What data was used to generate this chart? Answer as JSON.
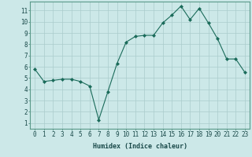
{
  "x": [
    0,
    1,
    2,
    3,
    4,
    5,
    6,
    7,
    8,
    9,
    10,
    11,
    12,
    13,
    14,
    15,
    16,
    17,
    18,
    19,
    20,
    21,
    22,
    23
  ],
  "y": [
    5.8,
    4.7,
    4.8,
    4.9,
    4.9,
    4.7,
    4.3,
    1.3,
    3.8,
    6.3,
    8.2,
    8.7,
    8.8,
    8.8,
    9.9,
    10.6,
    11.4,
    10.2,
    11.2,
    9.9,
    8.5,
    6.7,
    6.7,
    5.5
  ],
  "line_color": "#1a6b5a",
  "marker": "D",
  "marker_size": 2.0,
  "bg_color": "#cce8e8",
  "grid_color": "#aacccc",
  "xlabel": "Humidex (Indice chaleur)",
  "xlim": [
    -0.5,
    23.5
  ],
  "ylim": [
    0.5,
    11.8
  ],
  "yticks": [
    1,
    2,
    3,
    4,
    5,
    6,
    7,
    8,
    9,
    10,
    11
  ],
  "xticks": [
    0,
    1,
    2,
    3,
    4,
    5,
    6,
    7,
    8,
    9,
    10,
    11,
    12,
    13,
    14,
    15,
    16,
    17,
    18,
    19,
    20,
    21,
    22,
    23
  ],
  "xlabel_fontsize": 6.0,
  "tick_fontsize": 5.5
}
